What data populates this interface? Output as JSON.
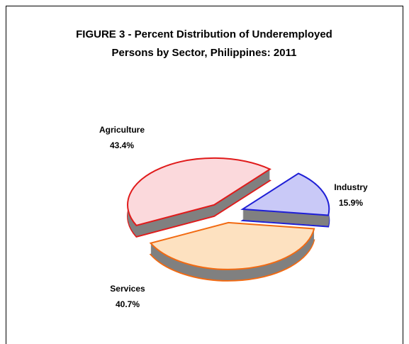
{
  "chart_data": {
    "type": "pie",
    "title": "FIGURE 3 - Percent Distribution of Underemployed Persons by Sector, Philippines: 2011",
    "categories": [
      "Agriculture",
      "Industry",
      "Services"
    ],
    "values": [
      43.4,
      15.9,
      40.7
    ],
    "value_labels": [
      "43.4%",
      "15.9%",
      "40.7%"
    ],
    "colors": [
      "#fbd9dc",
      "#c9c9f7",
      "#fde1c0"
    ],
    "edge_colors": [
      "#e01b1b",
      "#1f1fd6",
      "#f26a12"
    ]
  }
}
